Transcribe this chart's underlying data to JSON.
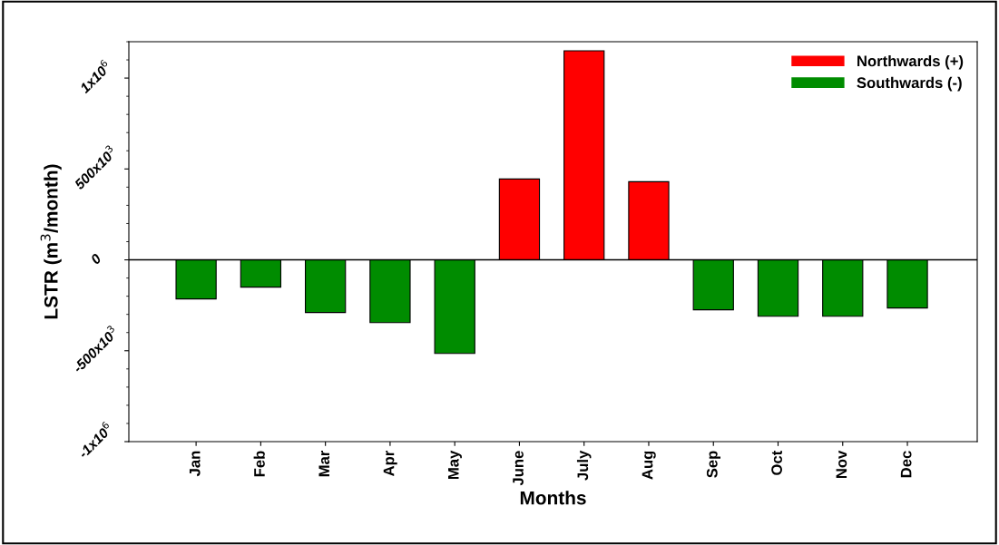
{
  "chart_data": {
    "type": "bar",
    "xlabel": "Months",
    "ylabel": "LSTR (m$^{3}$/month)",
    "categories": [
      "Jan",
      "Feb",
      "Mar",
      "Apr",
      "May",
      "June",
      "July",
      "Aug",
      "Sep",
      "Oct",
      "Nov",
      "Dec"
    ],
    "series": [
      {
        "name": "Northwards (+)",
        "color": "#ff0000",
        "values": [
          null,
          null,
          null,
          null,
          null,
          445000,
          1150000,
          430000,
          null,
          null,
          null,
          null
        ]
      },
      {
        "name": "Southwards (-)",
        "color": "#008c00",
        "values": [
          -215000,
          -150000,
          -290000,
          -345000,
          -515000,
          null,
          null,
          null,
          -275000,
          -310000,
          -310000,
          -265000
        ]
      }
    ],
    "ylim": [
      -1000000,
      1200000
    ],
    "yticks": [
      {
        "value": -1000000,
        "label": "-1x10$^{6}$"
      },
      {
        "value": -500000,
        "label": "-500x10$^{3}$"
      },
      0,
      {
        "value": 500000,
        "label": "500x10$^{3}$"
      },
      {
        "value": 1000000,
        "label": "1x10$^{6}$"
      }
    ],
    "ref_lines": [
      {
        "axis": "y",
        "value": 0,
        "color": "#000000"
      }
    ],
    "grid": false,
    "legend": "top right"
  }
}
